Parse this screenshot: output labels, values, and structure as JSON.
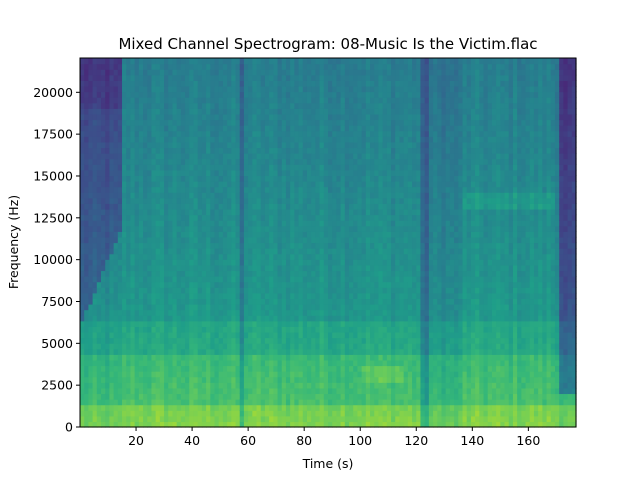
{
  "chart_data": {
    "type": "heatmap",
    "title": "Mixed Channel Spectrogram: 08-Music Is the Victim.flac",
    "xlabel": "Time (s)",
    "ylabel": "Frequency (Hz)",
    "xlim": [
      0,
      177
    ],
    "ylim": [
      0,
      22050
    ],
    "x_ticks": [
      20,
      40,
      60,
      80,
      100,
      120,
      140,
      160
    ],
    "x_tick_labels": [
      "20",
      "40",
      "60",
      "80",
      "100",
      "120",
      "140",
      "160"
    ],
    "y_ticks": [
      0,
      2500,
      5000,
      7500,
      10000,
      12500,
      15000,
      17500,
      20000
    ],
    "y_tick_labels": [
      "0",
      "2500",
      "5000",
      "7500",
      "10000",
      "12500",
      "15000",
      "17500",
      "20000"
    ],
    "colormap": "viridis",
    "grid": false,
    "segments": [
      {
        "start": 0,
        "end": 15,
        "level": "quiet intro"
      },
      {
        "start": 15,
        "end": 57,
        "level": "loud"
      },
      {
        "start": 57,
        "end": 59,
        "level": "dip"
      },
      {
        "start": 59,
        "end": 122,
        "level": "loud"
      },
      {
        "start": 122,
        "end": 124,
        "level": "dip"
      },
      {
        "start": 124,
        "end": 137,
        "level": "transient section"
      },
      {
        "start": 137,
        "end": 170,
        "level": "loud"
      },
      {
        "start": 170,
        "end": 177,
        "level": "fade out"
      }
    ]
  }
}
